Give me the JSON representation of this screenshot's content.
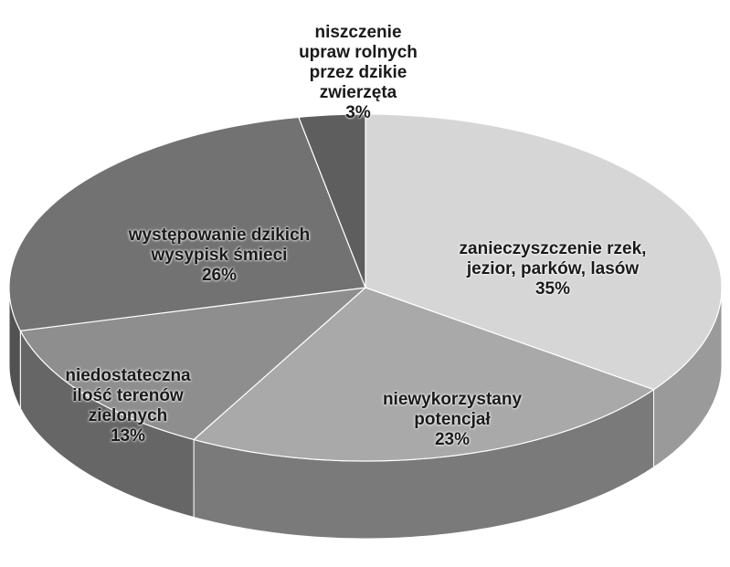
{
  "chart_data": {
    "type": "pie",
    "categories": [
      "zanieczyszczenie rzek, jezior, parków, lasów",
      "niewykorzystany potencjał",
      "niedostateczna ilość terenów zielonych",
      "występowanie dzikich wysypisk śmieci",
      "niszczenie upraw rolnych przez dzikie zwierzęta"
    ],
    "values": [
      35,
      23,
      13,
      26,
      3
    ],
    "value_labels": [
      "35%",
      "23%",
      "13%",
      "26%",
      "3%"
    ],
    "colors": [
      "#d6d6d6",
      "#a9a9a9",
      "#8e8e8e",
      "#727272",
      "#5e5e5e"
    ]
  }
}
